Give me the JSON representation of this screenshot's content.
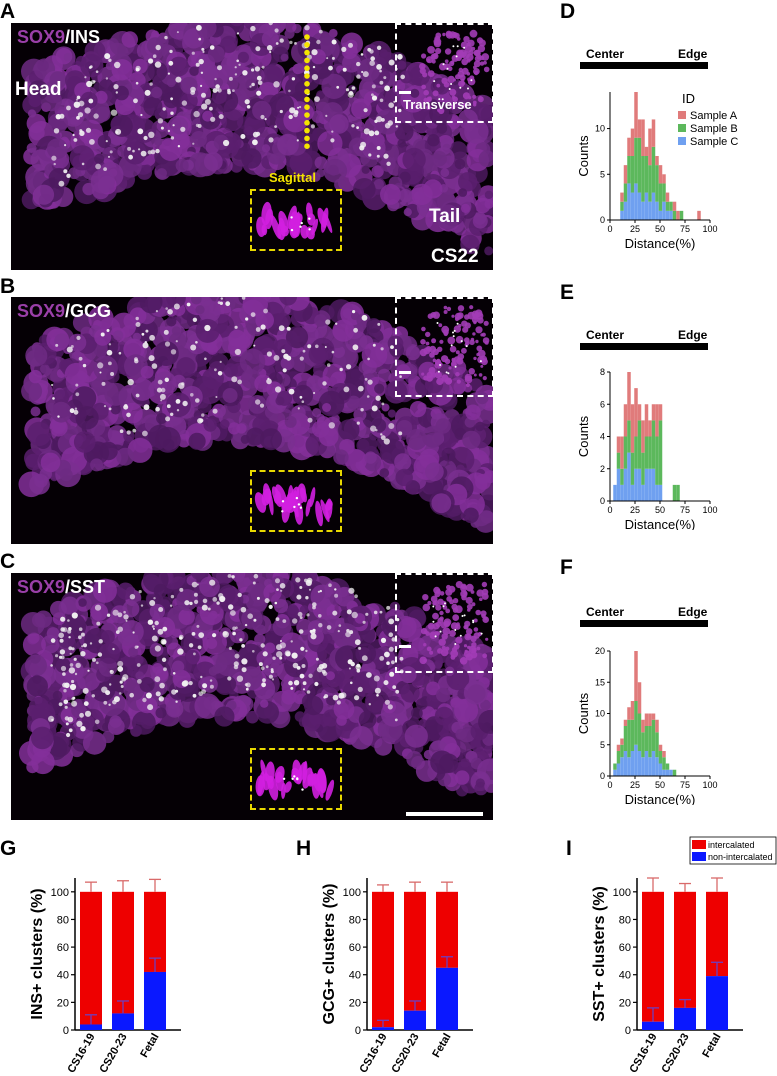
{
  "panels": {
    "a": {
      "letter": "A",
      "marker1": "SOX9",
      "marker2": "/INS",
      "head": "Head",
      "tail": "Tail",
      "stage": "CS22",
      "sagittal": "Sagittal",
      "transverse": "Transverse"
    },
    "b": {
      "letter": "B",
      "marker1": "SOX9",
      "marker2": "/GCG"
    },
    "c": {
      "letter": "C",
      "marker1": "SOX9",
      "marker2": "/SST"
    },
    "d": {
      "letter": "D"
    },
    "e": {
      "letter": "E"
    },
    "f": {
      "letter": "F"
    },
    "g": {
      "letter": "G"
    },
    "h": {
      "letter": "H"
    },
    "i": {
      "letter": "I"
    }
  },
  "colors": {
    "sampleA": "#e07b7b",
    "sampleB": "#5cb85c",
    "sampleC": "#6fa0f0",
    "intercalated": "#ee0000",
    "nonIntercalated": "#0a18ff",
    "errorTop": "#d96a6a",
    "errorBottom": "#6d3fbf"
  },
  "chart_data": [
    {
      "id": "D",
      "type": "bar",
      "stacked": true,
      "center_label": "Center",
      "edge_label": "Edge",
      "xlabel": "Distance(%)",
      "ylabel": "Counts",
      "xlim": [
        0,
        100
      ],
      "ylim": [
        0,
        14
      ],
      "xticks": [
        "0",
        "25",
        "50",
        "75",
        "100"
      ],
      "yticks": [
        "0",
        "5",
        "10"
      ],
      "legend_title": "ID",
      "bin_width": 3.5,
      "x": [
        12,
        15.5,
        19,
        22.5,
        26,
        29.5,
        33,
        36.5,
        40,
        43.5,
        47,
        50.5,
        54,
        57.5,
        61,
        64.5,
        68,
        71.5,
        89
      ],
      "series": [
        {
          "name": "Sample C",
          "values": [
            1,
            2,
            4,
            3,
            4,
            3,
            2,
            3,
            2,
            3,
            2,
            1,
            2,
            1,
            1,
            0,
            0,
            0,
            0
          ]
        },
        {
          "name": "Sample B",
          "values": [
            1,
            2,
            3,
            4,
            5,
            6,
            5,
            4,
            4,
            5,
            4,
            3,
            2,
            1,
            1,
            1,
            0,
            1,
            0
          ]
        },
        {
          "name": "Sample A",
          "values": [
            1,
            2,
            2,
            3,
            5,
            2,
            4,
            1,
            4,
            3,
            1,
            2,
            1,
            1,
            0,
            1,
            1,
            0,
            1
          ]
        }
      ]
    },
    {
      "id": "E",
      "type": "bar",
      "stacked": true,
      "center_label": "Center",
      "edge_label": "Edge",
      "xlabel": "Distance(%)",
      "ylabel": "Counts",
      "xlim": [
        0,
        100
      ],
      "ylim": [
        0,
        8
      ],
      "xticks": [
        "0",
        "25",
        "50",
        "75",
        "100"
      ],
      "yticks": [
        "0",
        "2",
        "4",
        "6",
        "8"
      ],
      "bin_width": 3.5,
      "x": [
        5,
        8.5,
        12,
        15.5,
        19,
        22.5,
        26,
        29.5,
        33,
        36.5,
        40,
        43.5,
        47,
        50.5,
        64.5,
        68
      ],
      "series": [
        {
          "name": "Sample C",
          "values": [
            1,
            2,
            1,
            2,
            3,
            1,
            2,
            2,
            1,
            2,
            2,
            2,
            1,
            1,
            0,
            0
          ]
        },
        {
          "name": "Sample B",
          "values": [
            0,
            1,
            1,
            2,
            2,
            2,
            2,
            3,
            2,
            2,
            2,
            3,
            3,
            4,
            1,
            1
          ]
        },
        {
          "name": "Sample A",
          "values": [
            0,
            1,
            2,
            2,
            3,
            3,
            3,
            1,
            2,
            2,
            1,
            1,
            2,
            1,
            0,
            0
          ]
        }
      ]
    },
    {
      "id": "F",
      "type": "bar",
      "stacked": true,
      "center_label": "Center",
      "edge_label": "Edge",
      "xlabel": "Distance(%)",
      "ylabel": "Counts",
      "xlim": [
        0,
        100
      ],
      "ylim": [
        0,
        20
      ],
      "xticks": [
        "0",
        "25",
        "50",
        "75",
        "100"
      ],
      "yticks": [
        "0",
        "5",
        "10",
        "15",
        "20"
      ],
      "bin_width": 3.5,
      "x": [
        5,
        8.5,
        12,
        15.5,
        19,
        22.5,
        26,
        29.5,
        33,
        36.5,
        40,
        43.5,
        47,
        50.5,
        54,
        57.5,
        61,
        64.5
      ],
      "series": [
        {
          "name": "Sample C",
          "values": [
            1,
            2,
            3,
            4,
            3,
            4,
            5,
            4,
            3,
            4,
            3,
            4,
            3,
            2,
            1,
            1,
            1,
            0
          ]
        },
        {
          "name": "Sample B",
          "values": [
            1,
            2,
            2,
            4,
            6,
            5,
            7,
            6,
            4,
            4,
            5,
            5,
            4,
            2,
            2,
            1,
            0,
            1
          ]
        },
        {
          "name": "Sample A",
          "values": [
            0,
            1,
            1,
            1,
            2,
            3,
            8,
            5,
            2,
            2,
            2,
            1,
            2,
            1,
            1,
            0,
            0,
            0
          ]
        }
      ]
    },
    {
      "id": "G",
      "type": "bar",
      "stacked": true,
      "categories": [
        "CS16-19",
        "CS20-23",
        "Fetal"
      ],
      "ylabel": "INS+ clusters (%)",
      "ylim": [
        0,
        100
      ],
      "yticks": [
        "0",
        "20",
        "40",
        "60",
        "80",
        "100"
      ],
      "series": [
        {
          "name": "non-intercalated",
          "values": [
            4,
            12,
            42
          ],
          "error": [
            7,
            9,
            10
          ]
        },
        {
          "name": "intercalated",
          "values": [
            96,
            88,
            58
          ],
          "error": [
            7,
            8,
            9
          ]
        }
      ]
    },
    {
      "id": "H",
      "type": "bar",
      "stacked": true,
      "categories": [
        "CS16-19",
        "CS20-23",
        "Fetal"
      ],
      "ylabel": "GCG+ clusters (%)",
      "ylim": [
        0,
        100
      ],
      "yticks": [
        "0",
        "20",
        "40",
        "60",
        "80",
        "100"
      ],
      "series": [
        {
          "name": "non-intercalated",
          "values": [
            2,
            14,
            45
          ],
          "error": [
            5,
            7,
            8
          ]
        },
        {
          "name": "intercalated",
          "values": [
            98,
            86,
            55
          ],
          "error": [
            5,
            7,
            7
          ]
        }
      ]
    },
    {
      "id": "I",
      "type": "bar",
      "stacked": true,
      "categories": [
        "CS16-19",
        "CS20-23",
        "Fetal"
      ],
      "ylabel": "SST+ clusters (%)",
      "ylim": [
        0,
        100
      ],
      "yticks": [
        "0",
        "20",
        "40",
        "60",
        "80",
        "100"
      ],
      "legend": [
        "intercalated",
        "non-intercalated"
      ],
      "series": [
        {
          "name": "non-intercalated",
          "values": [
            6,
            16,
            39
          ],
          "error": [
            10,
            6,
            10
          ]
        },
        {
          "name": "intercalated",
          "values": [
            94,
            84,
            61
          ],
          "error": [
            10,
            6,
            10
          ]
        }
      ]
    }
  ]
}
